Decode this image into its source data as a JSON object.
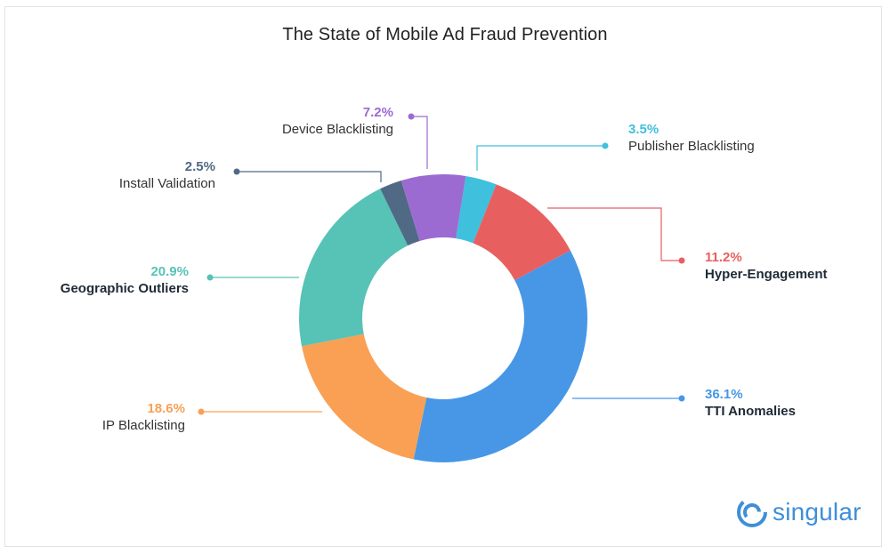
{
  "chart_data": {
    "type": "pie",
    "donut": true,
    "title": "The State of Mobile Ad Fraud Prevention",
    "slices": [
      {
        "label": "Publisher Blacklisting",
        "value": 3.5,
        "value_label": "3.5%",
        "color": "#3fc0dc",
        "label_side": "right",
        "label_weight": "normal"
      },
      {
        "label": "Hyper-Engagement",
        "value": 11.2,
        "value_label": "11.2%",
        "color": "#e85f5f",
        "label_side": "right",
        "label_weight": "bold"
      },
      {
        "label": "TTI Anomalies",
        "value": 36.1,
        "value_label": "36.1%",
        "color": "#4797e6",
        "label_side": "right",
        "label_weight": "bold"
      },
      {
        "label": "IP Blacklisting",
        "value": 18.6,
        "value_label": "18.6%",
        "color": "#f9a055",
        "label_side": "left",
        "label_weight": "normal"
      },
      {
        "label": "Geographic Outliers",
        "value": 20.9,
        "value_label": "20.9%",
        "color": "#56c3b6",
        "label_side": "left",
        "label_weight": "bold"
      },
      {
        "label": "Install Validation",
        "value": 2.5,
        "value_label": "2.5%",
        "color": "#506a85",
        "label_side": "left",
        "label_weight": "normal"
      },
      {
        "label": "Device Blacklisting",
        "value": 7.2,
        "value_label": "7.2%",
        "color": "#9b6bd2",
        "label_side": "left",
        "label_weight": "normal"
      }
    ]
  },
  "brand": {
    "name": "singular",
    "color": "#3f8fd8"
  }
}
